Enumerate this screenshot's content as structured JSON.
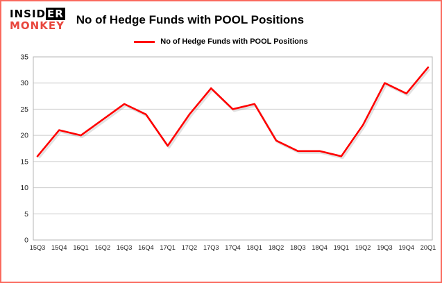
{
  "logo": {
    "line1_part1": "INSID",
    "line1_part2": "ER",
    "line2": "MONKEY"
  },
  "header": {
    "title": "No of Hedge Funds with POOL Positions"
  },
  "legend": {
    "label": "No of Hedge Funds with POOL Positions",
    "line_color": "#ff0000"
  },
  "chart_data": {
    "type": "line",
    "title": "No of Hedge Funds with POOL Positions",
    "categories": [
      "15Q3",
      "15Q4",
      "16Q1",
      "16Q2",
      "16Q3",
      "16Q4",
      "17Q1",
      "17Q2",
      "17Q3",
      "17Q4",
      "18Q1",
      "18Q2",
      "18Q3",
      "18Q4",
      "19Q1",
      "19Q2",
      "19Q3",
      "19Q4",
      "20Q1"
    ],
    "series": [
      {
        "name": "No of Hedge Funds with POOL Positions",
        "color": "#ff0000",
        "values": [
          16,
          21,
          20,
          23,
          26,
          24,
          18,
          24,
          29,
          25,
          26,
          19,
          17,
          17,
          16,
          22,
          30,
          28,
          33
        ]
      }
    ],
    "xlabel": "",
    "ylabel": "",
    "ylim": [
      0,
      35
    ],
    "ytick_step": 5,
    "yticks": [
      0,
      5,
      10,
      15,
      20,
      25,
      30,
      35
    ],
    "grid": true,
    "legend_position": "top"
  },
  "colors": {
    "frame_border": "#fa6a5e",
    "grid": "#cccccc",
    "plot_border": "#b5b5b5",
    "axis_text": "#222222",
    "logo_red": "#e8453c",
    "series_red": "#ff0000"
  }
}
